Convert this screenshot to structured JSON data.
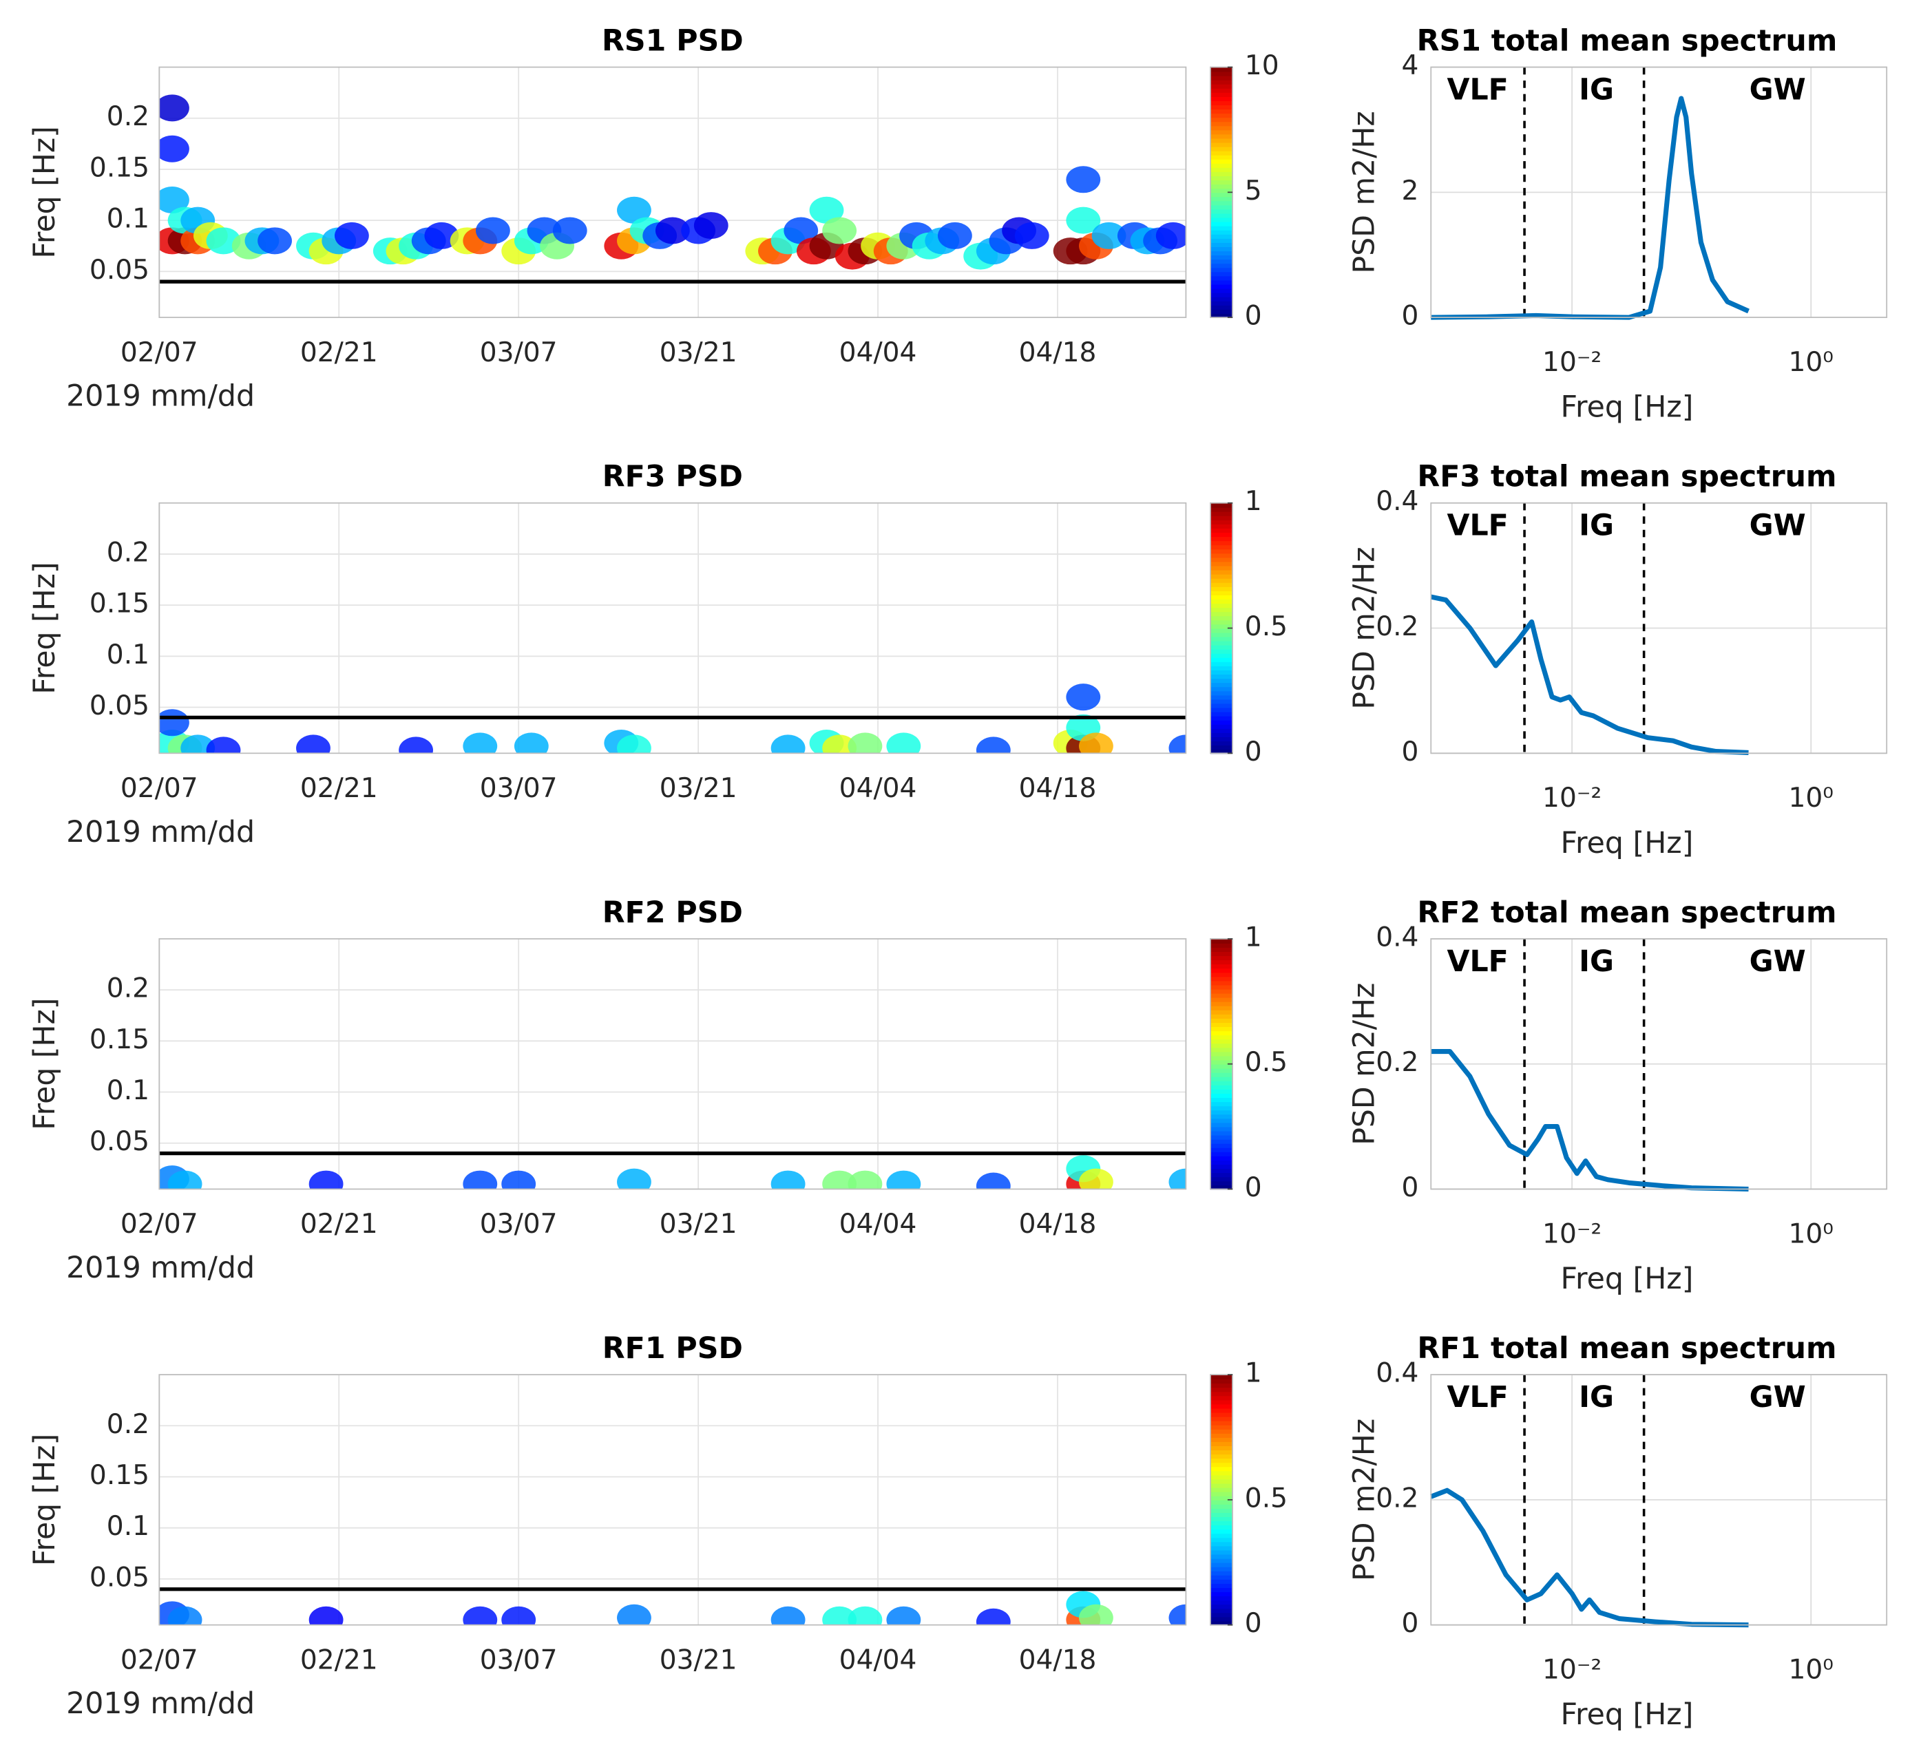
{
  "chart_data": [
    {
      "type": "heatmap",
      "title": "RS1 PSD",
      "x_label": "2019 mm/dd",
      "y_label": "Freq [Hz]",
      "x": [
        "02/08",
        "02/08",
        "02/08",
        "02/08",
        "02/09",
        "02/09",
        "02/10",
        "02/10",
        "02/11",
        "02/12",
        "02/14",
        "02/15",
        "02/16",
        "02/19",
        "02/20",
        "02/21",
        "02/22",
        "02/25",
        "02/26",
        "02/27",
        "02/28",
        "03/01",
        "03/03",
        "03/04",
        "03/05",
        "03/07",
        "03/08",
        "03/09",
        "03/10",
        "03/11",
        "03/15",
        "03/16",
        "03/16",
        "03/17",
        "03/18",
        "03/19",
        "03/21",
        "03/22",
        "03/26",
        "03/27",
        "03/28",
        "03/29",
        "03/30",
        "03/31",
        "03/31",
        "04/01",
        "04/02",
        "04/03",
        "04/04",
        "04/05",
        "04/06",
        "04/07",
        "04/08",
        "04/09",
        "04/10",
        "04/12",
        "04/13",
        "04/14",
        "04/15",
        "04/16",
        "04/19",
        "04/20",
        "04/20",
        "04/20",
        "04/21",
        "04/22",
        "04/24",
        "04/25",
        "04/26",
        "04/27"
      ],
      "y": [
        0.08,
        0.12,
        0.17,
        0.21,
        0.08,
        0.1,
        0.08,
        0.1,
        0.085,
        0.08,
        0.075,
        0.08,
        0.08,
        0.075,
        0.07,
        0.08,
        0.085,
        0.07,
        0.07,
        0.075,
        0.08,
        0.085,
        0.08,
        0.08,
        0.09,
        0.07,
        0.08,
        0.09,
        0.075,
        0.09,
        0.075,
        0.08,
        0.11,
        0.09,
        0.085,
        0.09,
        0.09,
        0.095,
        0.07,
        0.07,
        0.08,
        0.09,
        0.07,
        0.075,
        0.11,
        0.09,
        0.065,
        0.07,
        0.075,
        0.07,
        0.075,
        0.085,
        0.075,
        0.08,
        0.085,
        0.065,
        0.07,
        0.08,
        0.09,
        0.085,
        0.07,
        0.07,
        0.1,
        0.14,
        0.075,
        0.085,
        0.085,
        0.08,
        0.08,
        0.085
      ],
      "values": [
        9,
        3,
        1.5,
        0.8,
        10,
        4,
        8,
        3,
        6,
        4,
        5,
        3,
        2,
        4,
        6,
        3,
        1.5,
        4,
        6,
        4,
        2,
        1.5,
        6,
        8,
        2,
        6,
        4,
        2,
        5,
        2,
        9,
        7,
        3,
        4,
        2,
        1,
        1.5,
        1,
        6,
        8,
        4,
        2,
        9,
        10,
        4,
        5,
        9,
        10,
        6,
        8,
        5,
        2,
        4,
        3,
        2,
        4,
        3,
        2,
        1,
        1.5,
        10,
        10,
        4,
        2,
        8,
        3,
        2,
        3,
        2,
        1.5
      ],
      "xlim": [
        "02/07",
        "04/28"
      ],
      "xticks": [
        "02/07",
        "02/21",
        "03/07",
        "03/21",
        "04/04",
        "04/18"
      ],
      "ylim": [
        0.005,
        0.25
      ],
      "yticks": [
        0.05,
        0.1,
        0.15,
        0.2
      ],
      "clim": [
        0,
        10
      ],
      "cticks": [
        0,
        5,
        10
      ],
      "colormap": "jet",
      "hline": 0.04,
      "hline_color": "#000000",
      "grid": true
    },
    {
      "type": "line",
      "title": "RS1 total mean spectrum",
      "x_label": "Freq [Hz]",
      "y_label": "PSD m2/Hz",
      "xscale": "log",
      "x": [
        0.00066,
        0.002,
        0.005,
        0.01,
        0.03,
        0.045,
        0.055,
        0.065,
        0.075,
        0.082,
        0.09,
        0.1,
        0.12,
        0.15,
        0.2,
        0.3
      ],
      "values": [
        0,
        0.01,
        0.03,
        0.01,
        0,
        0.1,
        0.8,
        2.2,
        3.2,
        3.5,
        3.2,
        2.3,
        1.2,
        0.6,
        0.25,
        0.1
      ],
      "color": "#0072bd",
      "xlim": [
        0.00066,
        4.3
      ],
      "xticks": [
        {
          "value": 0.01,
          "label": "10⁻²"
        },
        {
          "value": 1,
          "label": "10⁰"
        }
      ],
      "ylim": [
        0,
        4
      ],
      "yticks": [
        0,
        2,
        4
      ],
      "vlines": [
        0.004,
        0.04
      ],
      "annotations": [
        "VLF",
        "IG",
        "GW"
      ],
      "grid": true
    },
    {
      "type": "heatmap",
      "title": "RF3 PSD",
      "x_label": "2019 mm/dd",
      "y_label": "Freq [Hz]",
      "x": [
        "02/08",
        "02/08",
        "02/09",
        "02/10",
        "02/12",
        "02/19",
        "02/27",
        "03/04",
        "03/08",
        "03/15",
        "03/16",
        "03/28",
        "03/31",
        "04/01",
        "04/03",
        "04/06",
        "04/13",
        "04/19",
        "04/20",
        "04/20",
        "04/20",
        "04/21",
        "04/28"
      ],
      "y": [
        0.015,
        0.035,
        0.01,
        0.01,
        0.008,
        0.01,
        0.008,
        0.012,
        0.012,
        0.015,
        0.01,
        0.01,
        0.015,
        0.01,
        0.012,
        0.012,
        0.008,
        0.015,
        0.01,
        0.03,
        0.06,
        0.012,
        0.01
      ],
      "values": [
        0.4,
        0.2,
        0.5,
        0.3,
        0.15,
        0.15,
        0.15,
        0.3,
        0.3,
        0.3,
        0.4,
        0.3,
        0.4,
        0.6,
        0.5,
        0.4,
        0.2,
        0.6,
        1,
        0.4,
        0.2,
        0.7,
        0.2
      ],
      "xlim": [
        "02/07",
        "04/28"
      ],
      "xticks": [
        "02/07",
        "02/21",
        "03/07",
        "03/21",
        "04/04",
        "04/18"
      ],
      "ylim": [
        0.005,
        0.25
      ],
      "yticks": [
        0.05,
        0.1,
        0.15,
        0.2
      ],
      "clim": [
        0,
        1
      ],
      "cticks": [
        0,
        0.5,
        1
      ],
      "colormap": "jet",
      "hline": 0.04,
      "hline_color": "#000000",
      "grid": true
    },
    {
      "type": "line",
      "title": "RF3 total mean spectrum",
      "x_label": "Freq [Hz]",
      "y_label": "PSD m2/Hz",
      "xscale": "log",
      "x": [
        0.00066,
        0.00088,
        0.0014,
        0.0023,
        0.0035,
        0.0046,
        0.0055,
        0.0068,
        0.008,
        0.0095,
        0.012,
        0.015,
        0.024,
        0.043,
        0.07,
        0.1,
        0.16,
        0.3
      ],
      "values": [
        0.25,
        0.245,
        0.2,
        0.14,
        0.18,
        0.21,
        0.15,
        0.09,
        0.085,
        0.09,
        0.065,
        0.06,
        0.04,
        0.025,
        0.02,
        0.01,
        0.003,
        0.001
      ],
      "color": "#0072bd",
      "xlim": [
        0.00066,
        4.3
      ],
      "xticks": [
        {
          "value": 0.01,
          "label": "10⁻²"
        },
        {
          "value": 1,
          "label": "10⁰"
        }
      ],
      "ylim": [
        0,
        0.4
      ],
      "yticks": [
        0,
        0.2,
        0.4
      ],
      "vlines": [
        0.004,
        0.04
      ],
      "annotations": [
        "VLF",
        "IG",
        "GW"
      ],
      "grid": true
    },
    {
      "type": "heatmap",
      "title": "RF2 PSD",
      "x_label": "2019 mm/dd",
      "y_label": "Freq [Hz]",
      "x": [
        "02/08",
        "02/09",
        "02/20",
        "03/04",
        "03/07",
        "03/16",
        "03/28",
        "04/01",
        "04/03",
        "04/06",
        "04/13",
        "04/20",
        "04/20",
        "04/21",
        "04/28"
      ],
      "y": [
        0.015,
        0.01,
        0.01,
        0.01,
        0.01,
        0.012,
        0.01,
        0.01,
        0.01,
        0.01,
        0.008,
        0.01,
        0.025,
        0.012,
        0.012
      ],
      "values": [
        0.25,
        0.3,
        0.15,
        0.2,
        0.2,
        0.3,
        0.3,
        0.5,
        0.5,
        0.3,
        0.2,
        0.9,
        0.4,
        0.6,
        0.3
      ],
      "xlim": [
        "02/07",
        "04/28"
      ],
      "xticks": [
        "02/07",
        "02/21",
        "03/07",
        "03/21",
        "04/04",
        "04/18"
      ],
      "ylim": [
        0.005,
        0.25
      ],
      "yticks": [
        0.05,
        0.1,
        0.15,
        0.2
      ],
      "clim": [
        0,
        1
      ],
      "cticks": [
        0,
        0.5,
        1
      ],
      "colormap": "jet",
      "hline": 0.04,
      "hline_color": "#000000",
      "grid": true
    },
    {
      "type": "line",
      "title": "RF2 total mean spectrum",
      "x_label": "Freq [Hz]",
      "y_label": "PSD m2/Hz",
      "xscale": "log",
      "x": [
        0.00066,
        0.00095,
        0.0014,
        0.002,
        0.003,
        0.0042,
        0.0052,
        0.006,
        0.0075,
        0.009,
        0.011,
        0.013,
        0.016,
        0.02,
        0.03,
        0.06,
        0.1,
        0.3
      ],
      "values": [
        0.22,
        0.22,
        0.18,
        0.12,
        0.07,
        0.055,
        0.08,
        0.1,
        0.1,
        0.05,
        0.025,
        0.045,
        0.02,
        0.015,
        0.01,
        0.005,
        0.002,
        0
      ],
      "color": "#0072bd",
      "xlim": [
        0.00066,
        4.3
      ],
      "xticks": [
        {
          "value": 0.01,
          "label": "10⁻²"
        },
        {
          "value": 1,
          "label": "10⁰"
        }
      ],
      "ylim": [
        0,
        0.4
      ],
      "yticks": [
        0,
        0.2,
        0.4
      ],
      "vlines": [
        0.004,
        0.04
      ],
      "annotations": [
        "VLF",
        "IG",
        "GW"
      ],
      "grid": true
    },
    {
      "type": "heatmap",
      "title": "RF1 PSD",
      "x_label": "2019 mm/dd",
      "y_label": "Freq [Hz]",
      "x": [
        "02/08",
        "02/09",
        "02/20",
        "03/04",
        "03/07",
        "03/16",
        "03/28",
        "04/01",
        "04/03",
        "04/06",
        "04/13",
        "04/20",
        "04/20",
        "04/21",
        "04/28"
      ],
      "y": [
        0.015,
        0.01,
        0.01,
        0.01,
        0.01,
        0.012,
        0.01,
        0.01,
        0.01,
        0.01,
        0.008,
        0.01,
        0.025,
        0.012,
        0.012
      ],
      "values": [
        0.2,
        0.25,
        0.12,
        0.15,
        0.15,
        0.25,
        0.25,
        0.4,
        0.4,
        0.25,
        0.15,
        0.8,
        0.35,
        0.5,
        0.2
      ],
      "xlim": [
        "02/07",
        "04/28"
      ],
      "xticks": [
        "02/07",
        "02/21",
        "03/07",
        "03/21",
        "04/04",
        "04/18"
      ],
      "ylim": [
        0.005,
        0.25
      ],
      "yticks": [
        0.05,
        0.1,
        0.15,
        0.2
      ],
      "clim": [
        0,
        1
      ],
      "cticks": [
        0,
        0.5,
        1
      ],
      "colormap": "jet",
      "hline": 0.04,
      "hline_color": "#000000",
      "grid": true
    },
    {
      "type": "line",
      "title": "RF1 total mean spectrum",
      "x_label": "Freq [Hz]",
      "y_label": "PSD m2/Hz",
      "xscale": "log",
      "x": [
        0.00066,
        0.0009,
        0.0012,
        0.0018,
        0.0028,
        0.0042,
        0.0055,
        0.0075,
        0.01,
        0.012,
        0.014,
        0.017,
        0.025,
        0.05,
        0.1,
        0.3
      ],
      "values": [
        0.205,
        0.215,
        0.2,
        0.15,
        0.08,
        0.04,
        0.05,
        0.08,
        0.05,
        0.025,
        0.04,
        0.02,
        0.01,
        0.005,
        0.001,
        0
      ],
      "color": "#0072bd",
      "xlim": [
        0.00066,
        4.3
      ],
      "xticks": [
        {
          "value": 0.01,
          "label": "10⁻²"
        },
        {
          "value": 1,
          "label": "10⁰"
        }
      ],
      "ylim": [
        0,
        0.4
      ],
      "yticks": [
        0,
        0.2,
        0.4
      ],
      "vlines": [
        0.004,
        0.04
      ],
      "annotations": [
        "VLF",
        "IG",
        "GW"
      ],
      "grid": true
    }
  ]
}
